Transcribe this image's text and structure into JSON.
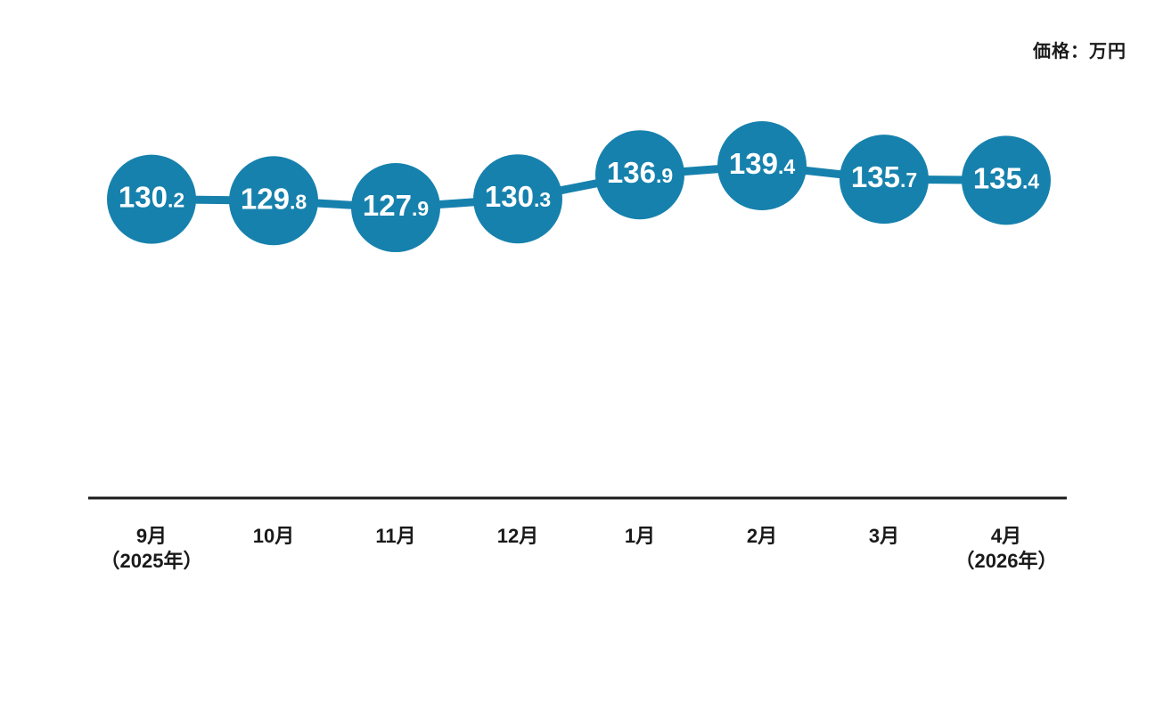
{
  "header": {
    "unit_label": "価格：万円"
  },
  "chart_data": {
    "type": "line",
    "title": "",
    "unit": "万円",
    "categories": [
      "9月",
      "10月",
      "11月",
      "12月",
      "1月",
      "2月",
      "3月",
      "4月"
    ],
    "category_sublabels": [
      "（2025年）",
      "",
      "",
      "",
      "",
      "",
      "",
      "（2026年）"
    ],
    "values": [
      130.2,
      129.8,
      127.9,
      130.3,
      136.9,
      139.4,
      135.7,
      135.4
    ],
    "accent_color": "#1681ad",
    "axis_color": "#1a1a1a",
    "marker_text_color": "#ffffff",
    "legend_position": "none",
    "grid": false
  }
}
